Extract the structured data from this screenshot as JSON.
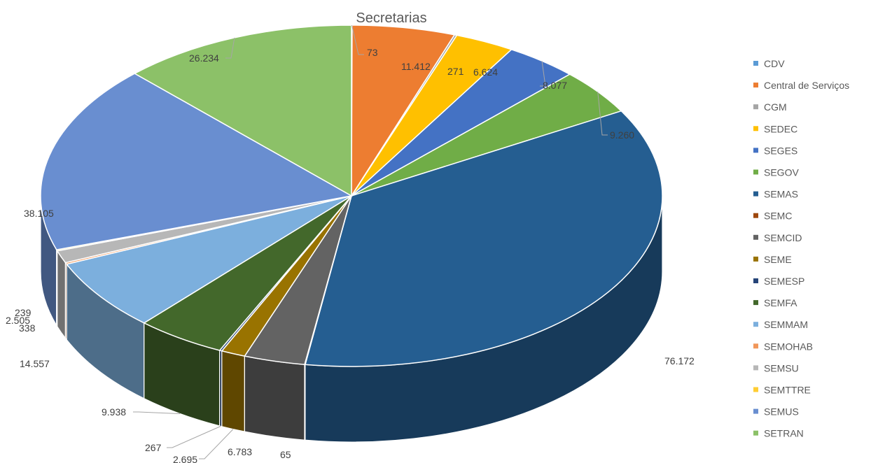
{
  "chart_data": {
    "type": "pie",
    "title": "Secretarias",
    "legend_position": "right",
    "start_angle_deg": -90,
    "slices": [
      {
        "name": "CDV",
        "value": 73,
        "label": "73",
        "color": "#5B9BD5"
      },
      {
        "name": "Central de Serviços",
        "value": 11412,
        "label": "11.412",
        "color": "#ED7D31"
      },
      {
        "name": "CGM",
        "value": 271,
        "label": "271",
        "color": "#A5A5A5"
      },
      {
        "name": "SEDEC",
        "value": 6624,
        "label": "6.624",
        "color": "#FFC000"
      },
      {
        "name": "SEGES",
        "value": 8077,
        "label": "8.077",
        "color": "#4472C4"
      },
      {
        "name": "SEGOV",
        "value": 9260,
        "label": "9.260",
        "color": "#70AD47"
      },
      {
        "name": "SEMAS",
        "value": 76172,
        "label": "76.172",
        "color": "#255E91"
      },
      {
        "name": "SEMC",
        "value": 65,
        "label": "65",
        "color": "#9E480E"
      },
      {
        "name": "SEMCID",
        "value": 6783,
        "label": "6.783",
        "color": "#636363"
      },
      {
        "name": "SEME",
        "value": 2695,
        "label": "2.695",
        "color": "#997300"
      },
      {
        "name": "SEMESP",
        "value": 267,
        "label": "267",
        "color": "#264478"
      },
      {
        "name": "SEMFA",
        "value": 9938,
        "label": "9.938",
        "color": "#43682B"
      },
      {
        "name": "SEMMAM",
        "value": 14557,
        "label": "14.557",
        "color": "#7CAFDD"
      },
      {
        "name": "SEMOHAB",
        "value": 338,
        "label": "338",
        "color": "#F1975A"
      },
      {
        "name": "SEMSU",
        "value": 2505,
        "label": "2.505",
        "color": "#B7B7B7"
      },
      {
        "name": "SEMTTRE",
        "value": 239,
        "label": "239",
        "color": "#FFCD33"
      },
      {
        "name": "SEMUS",
        "value": 38105,
        "label": "38.105",
        "color": "#698ED0"
      },
      {
        "name": "SETRAN",
        "value": 26234,
        "label": "26.234",
        "color": "#8CC168"
      }
    ]
  }
}
